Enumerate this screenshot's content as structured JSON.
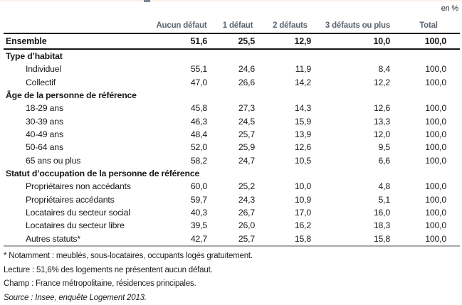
{
  "unit_label": "en %",
  "table": {
    "columns": [
      "Aucun défaut",
      "1 défaut",
      "2 défauts",
      "3 défauts ou plus",
      "Total"
    ],
    "ensemble": {
      "label": "Ensemble",
      "values": [
        "51,6",
        "25,5",
        "12,9",
        "10,0",
        "100,0"
      ]
    },
    "rows": [
      {
        "label": "Type d’habitat",
        "type": "section",
        "values": [
          "",
          "",
          "",
          "",
          ""
        ]
      },
      {
        "label": "Individuel",
        "type": "data",
        "values": [
          "55,1",
          "24,6",
          "11,9",
          "8,4",
          "100,0"
        ]
      },
      {
        "label": "Collectif",
        "type": "data",
        "values": [
          "47,0",
          "26,6",
          "14,2",
          "12,2",
          "100,0"
        ]
      },
      {
        "label": "Âge de la personne de référence",
        "type": "section",
        "values": [
          "",
          "",
          "",
          "",
          ""
        ]
      },
      {
        "label": "18-29 ans",
        "type": "data",
        "values": [
          "45,8",
          "27,3",
          "14,3",
          "12,6",
          "100,0"
        ]
      },
      {
        "label": "30-39 ans",
        "type": "data",
        "values": [
          "46,3",
          "24,5",
          "15,9",
          "13,3",
          "100,0"
        ]
      },
      {
        "label": "40-49 ans",
        "type": "data",
        "values": [
          "48,4",
          "25,7",
          "13,9",
          "12,0",
          "100,0"
        ]
      },
      {
        "label": "50-64 ans",
        "type": "data",
        "values": [
          "52,0",
          "25,9",
          "12,6",
          "9,5",
          "100,0"
        ]
      },
      {
        "label": "65 ans ou plus",
        "type": "data",
        "values": [
          "58,2",
          "24,7",
          "10,5",
          "6,6",
          "100,0"
        ]
      },
      {
        "label": "Statut d’occupation de la personne de référence",
        "type": "section",
        "values": [
          "",
          "",
          "",
          "",
          ""
        ]
      },
      {
        "label": "Propriétaires non accédants",
        "type": "data",
        "values": [
          "60,0",
          "25,2",
          "10,0",
          "4,8",
          "100,0"
        ]
      },
      {
        "label": "Propriétaires accédants",
        "type": "data",
        "values": [
          "59,7",
          "24,3",
          "10,9",
          "5,1",
          "100,0"
        ]
      },
      {
        "label": "Locataires du secteur social",
        "type": "data",
        "values": [
          "40,3",
          "26,7",
          "17,0",
          "16,0",
          "100,0"
        ]
      },
      {
        "label": "Locataires du secteur libre",
        "type": "data",
        "values": [
          "39,5",
          "26,0",
          "16,2",
          "18,3",
          "100,0"
        ]
      },
      {
        "label": "Autres statuts*",
        "type": "data",
        "values": [
          "42,7",
          "25,7",
          "15,8",
          "15,8",
          "100,0"
        ]
      }
    ]
  },
  "footnotes": [
    "* Notamment : meublés, sous-locataires, occupants logés gratuitement.",
    "Lecture : 51,6% des logements ne présentent aucun défaut.",
    "Champ : France métropolitaine, résidences principales.",
    "Source : Insee, enquête Logement 2013."
  ],
  "colors": {
    "header_text": "#5d6772",
    "body_text": "#1a1a1a",
    "rule_black": "#161616",
    "rule_gray": "#a7a7a7"
  }
}
